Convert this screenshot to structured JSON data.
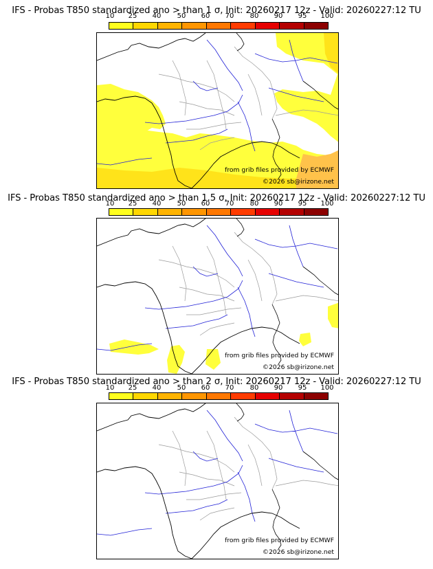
{
  "panels": [
    {
      "title": "IFS - Probas T850  standardized ano > than 1 σ, Init: 20260217 12z - Valid: 20260227:12 TU",
      "credit": "from grib files provided by ECMWF",
      "copyright": "©2026 sb@irizone.net",
      "coverage": "high"
    },
    {
      "title": "IFS - Probas T850  standardized ano > than 1.5 σ, Init: 20260217 12z - Valid: 20260227:12 TU",
      "credit": "from grib files provided by ECMWF",
      "copyright": "©2026 sb@irizone.net",
      "coverage": "low"
    },
    {
      "title": "IFS - Probas T850  standardized ano > than 2 σ, Init: 20260217 12z - Valid: 20260227:12 TU",
      "credit": "from grib files provided by ECMWF",
      "copyright": "©2026 sb@irizone.net",
      "coverage": "none"
    }
  ],
  "scale": {
    "labels": [
      "10",
      "25",
      "40",
      "50",
      "60",
      "70",
      "80",
      "90",
      "95",
      "100"
    ],
    "colors": [
      "#ffff1e",
      "#ffd700",
      "#ffb400",
      "#ff9600",
      "#ff7800",
      "#ff3c00",
      "#e60000",
      "#b40000",
      "#8c0000"
    ]
  },
  "colors": {
    "coast": "#000000",
    "rivers": "#1f1fd6",
    "borders": "#9a9a9a",
    "light_yellow": "#ffff3c",
    "dark_yellow": "#ffe31a",
    "orange_fill": "#ffc24a"
  }
}
